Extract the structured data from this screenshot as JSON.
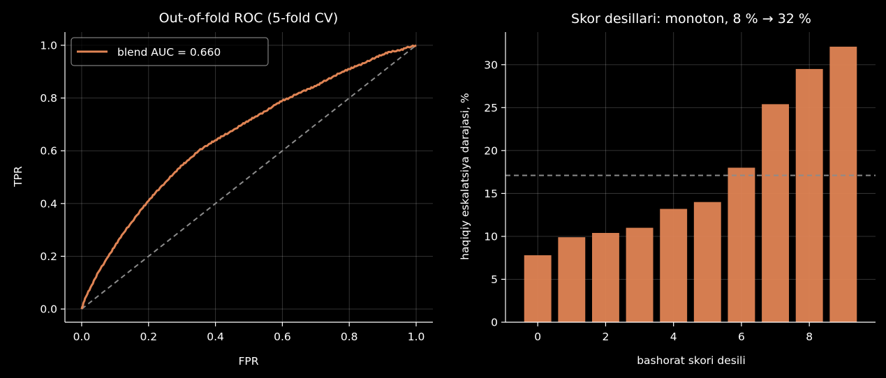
{
  "chart_data": [
    {
      "type": "line",
      "title": "Out-of-fold ROC (5-fold CV)",
      "xlabel": "FPR",
      "ylabel": "TPR",
      "xlim": [
        -0.05,
        1.05
      ],
      "ylim": [
        -0.05,
        1.05
      ],
      "xticks": [
        "0.0",
        "0.2",
        "0.4",
        "0.6",
        "0.8",
        "1.0"
      ],
      "yticks": [
        "0.0",
        "0.2",
        "0.4",
        "0.6",
        "0.8",
        "1.0"
      ],
      "grid": true,
      "legend_position": "upper-left",
      "series": [
        {
          "name": "blend  AUC = 0.660",
          "color": "#e08454",
          "x": [
            0,
            0.01,
            0.03,
            0.05,
            0.08,
            0.1,
            0.12,
            0.15,
            0.18,
            0.2,
            0.22,
            0.25,
            0.28,
            0.3,
            0.32,
            0.35,
            0.38,
            0.4,
            0.42,
            0.45,
            0.48,
            0.5,
            0.52,
            0.55,
            0.58,
            0.6,
            0.62,
            0.65,
            0.68,
            0.7,
            0.72,
            0.75,
            0.78,
            0.8,
            0.82,
            0.85,
            0.88,
            0.9,
            0.92,
            0.95,
            0.97,
            1.0
          ],
          "y": [
            0,
            0.04,
            0.09,
            0.14,
            0.2,
            0.24,
            0.28,
            0.33,
            0.38,
            0.41,
            0.44,
            0.48,
            0.52,
            0.545,
            0.565,
            0.6,
            0.625,
            0.64,
            0.655,
            0.675,
            0.7,
            0.715,
            0.73,
            0.75,
            0.775,
            0.79,
            0.8,
            0.82,
            0.835,
            0.845,
            0.86,
            0.88,
            0.9,
            0.91,
            0.92,
            0.935,
            0.955,
            0.965,
            0.975,
            0.98,
            0.99,
            1.0
          ]
        },
        {
          "name": "",
          "style": "dashed",
          "color": "#8c8c8c",
          "x": [
            0,
            1
          ],
          "y": [
            0,
            1
          ]
        }
      ]
    },
    {
      "type": "bar",
      "title": "Skor desillari: monoton, 8 % → 32 %",
      "xlabel": "bashorat skori desili",
      "ylabel": "haqiqiy eskalatsiya darajasi, %",
      "categories": [
        0,
        1,
        2,
        3,
        4,
        5,
        6,
        7,
        8,
        9
      ],
      "values": [
        7.8,
        9.9,
        10.4,
        11.0,
        13.2,
        14.0,
        18.0,
        25.4,
        29.5,
        32.1
      ],
      "xlim": [
        -0.95,
        9.95
      ],
      "ylim": [
        0,
        33.8
      ],
      "xticks": [
        "0",
        "2",
        "4",
        "6",
        "8"
      ],
      "yticks": [
        "0",
        "5",
        "10",
        "15",
        "20",
        "25",
        "30"
      ],
      "grid": true,
      "bar_color": "#e08454",
      "reference_line": {
        "value": 17.1,
        "style": "dashed",
        "color": "#8c8c8c"
      }
    }
  ]
}
